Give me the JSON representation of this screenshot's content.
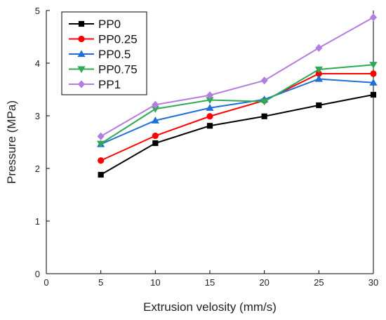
{
  "chart_data": {
    "type": "line",
    "xlabel": "Extrusion velosity (mm/s)",
    "ylabel": "Pressure (MPa)",
    "xlim": [
      0,
      30
    ],
    "ylim": [
      0,
      5
    ],
    "xticks": [
      0,
      5,
      10,
      15,
      20,
      25,
      30
    ],
    "yticks": [
      0,
      1,
      2,
      3,
      4,
      5
    ],
    "grid": false,
    "legend_position": "top-left",
    "x": [
      5,
      10,
      15,
      20,
      25,
      30
    ],
    "series": [
      {
        "name": "PP0",
        "color": "#000000",
        "marker": "square",
        "values": [
          1.88,
          2.48,
          2.81,
          2.99,
          3.2,
          3.4
        ]
      },
      {
        "name": "PP0.25",
        "color": "#ff0000",
        "marker": "circle",
        "values": [
          2.15,
          2.62,
          2.99,
          3.29,
          3.8,
          3.8
        ]
      },
      {
        "name": "PP0.5",
        "color": "#1f6fd8",
        "marker": "triangle-up",
        "values": [
          2.46,
          2.91,
          3.15,
          3.31,
          3.7,
          3.63
        ]
      },
      {
        "name": "PP0.75",
        "color": "#2eaa55",
        "marker": "triangle-down",
        "values": [
          2.47,
          3.13,
          3.3,
          3.27,
          3.88,
          3.97
        ]
      },
      {
        "name": "PP1",
        "color": "#b47de0",
        "marker": "diamond",
        "values": [
          2.61,
          3.21,
          3.39,
          3.67,
          4.29,
          4.87
        ]
      }
    ]
  }
}
